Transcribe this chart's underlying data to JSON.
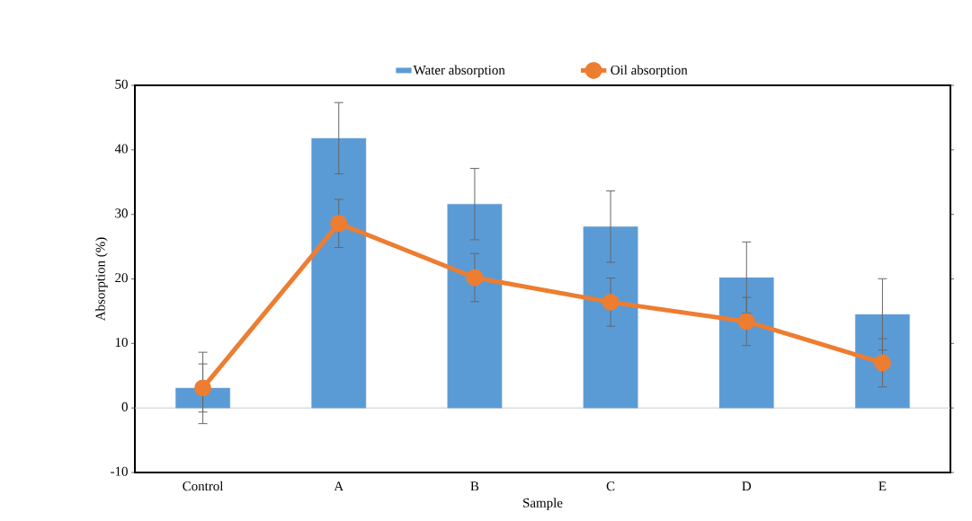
{
  "chart_data": {
    "type": "bar",
    "xlabel": "Sample",
    "ylabel": "Absorption (%)",
    "categories": [
      "Control",
      "A",
      "B",
      "C",
      "D",
      "E"
    ],
    "ylim": [
      -10,
      50
    ],
    "yticks": [
      -10,
      0,
      10,
      20,
      30,
      40,
      50
    ],
    "legend": "top",
    "series": [
      {
        "name": "Water absorption",
        "color": "#5b9bd5",
        "values": [
          3.1,
          41.8,
          31.6,
          28.1,
          20.2,
          14.5
        ],
        "errors": [
          5.6,
          5.6,
          5.6,
          5.6,
          5.6,
          5.6
        ]
      },
      {
        "name": "Oil absorption",
        "type": "line",
        "color": "#ed7d31",
        "marker": "circle",
        "values": [
          3.1,
          28.6,
          20.2,
          16.4,
          13.4,
          7.0
        ],
        "errors": [
          3.8,
          3.8,
          3.8,
          3.8,
          3.8,
          3.8
        ]
      }
    ]
  }
}
